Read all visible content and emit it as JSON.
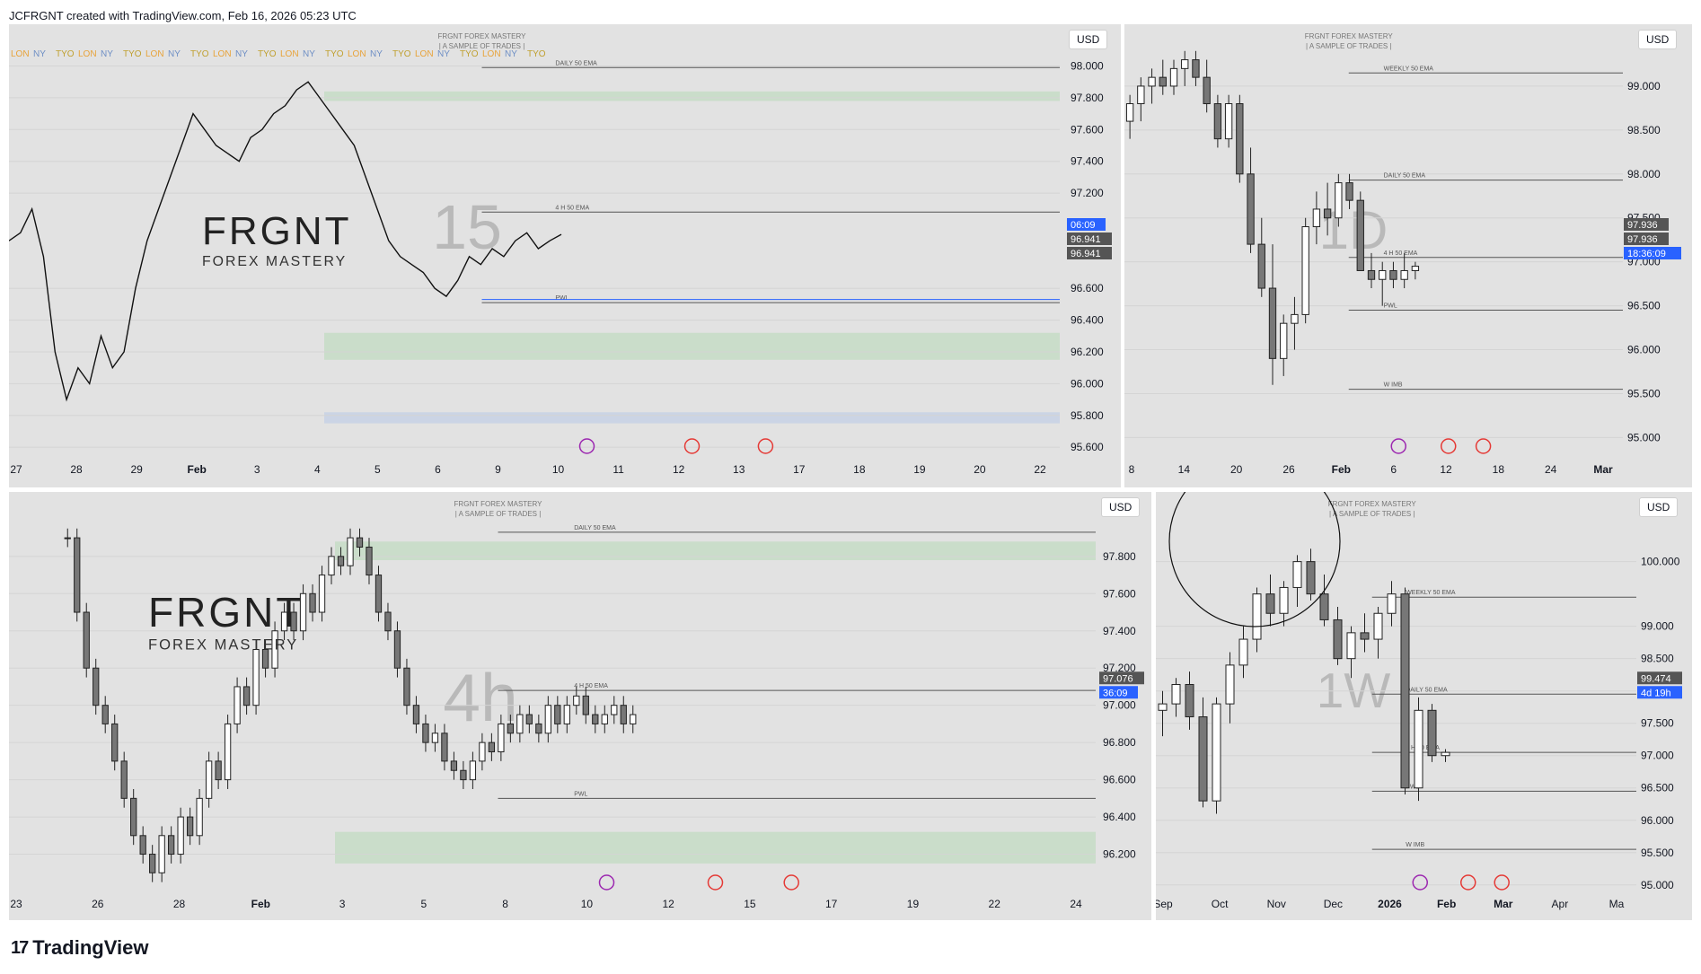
{
  "header": {
    "caption": "JCFRGNT created with TradingView.com, Feb 16, 2026 05:23 UTC"
  },
  "footer": {
    "brand": "TradingView",
    "logo_glyph": "17"
  },
  "watermark": {
    "title": "FRGNT FOREX MASTERY",
    "subtitle": "| A SAMPLE OF TRADES |",
    "brand_big": "FRGNT",
    "brand_small": "FOREX MASTERY"
  },
  "colors": {
    "bg": "#e2e2e2",
    "zone_green": "#c8ddc8",
    "zone_grey": "#c9c9c9",
    "blue_line": "#2962ff",
    "accent_blue": "#2962ff",
    "dark_label": "#555555",
    "event_purple": "#9c27b0",
    "event_red": "#e53935"
  },
  "chart_data": [
    {
      "id": "15m",
      "type": "line",
      "timeframe": "15",
      "currency": "USD",
      "session_labels": [
        "LON",
        "NY",
        "TYO"
      ],
      "x_ticks": [
        "27",
        "28",
        "29",
        "Feb",
        "3",
        "4",
        "5",
        "6",
        "9",
        "10",
        "11",
        "12",
        "13",
        "17",
        "18",
        "19",
        "20",
        "22"
      ],
      "y_ticks": [
        "98.000",
        "97.800",
        "97.600",
        "97.400",
        "97.200",
        "96.600",
        "96.400",
        "96.200",
        "96.000",
        "95.800",
        "95.600"
      ],
      "ylim": [
        95.55,
        98.15
      ],
      "price_labels": [
        {
          "text": "06:09",
          "kind": "blue"
        },
        {
          "text": "96.941",
          "kind": "dark"
        },
        {
          "text": "96.941",
          "kind": "dark"
        }
      ],
      "annotations": [
        "DAILY 50 EMA",
        "4 H 50 EMA",
        "PWL"
      ],
      "zones": [
        {
          "from": 97.78,
          "to": 97.84,
          "kind": "green"
        },
        {
          "from": 96.15,
          "to": 96.32,
          "kind": "green"
        },
        {
          "from": 95.75,
          "to": 95.82,
          "kind": "blue"
        }
      ],
      "levels": [
        {
          "value": 97.99,
          "name": "DAILY 50 EMA"
        },
        {
          "value": 97.08,
          "name": "4 H 50 EMA"
        },
        {
          "value": 96.51,
          "name": "PWL"
        },
        {
          "value": 96.53,
          "name": "blue"
        }
      ],
      "price_path": [
        96.9,
        96.95,
        97.1,
        96.8,
        96.2,
        95.9,
        96.1,
        96.0,
        96.3,
        96.1,
        96.2,
        96.6,
        96.9,
        97.1,
        97.3,
        97.5,
        97.7,
        97.6,
        97.5,
        97.45,
        97.4,
        97.55,
        97.6,
        97.7,
        97.75,
        97.85,
        97.9,
        97.8,
        97.7,
        97.6,
        97.5,
        97.3,
        97.1,
        96.9,
        96.8,
        96.75,
        96.7,
        96.6,
        96.55,
        96.65,
        96.8,
        96.75,
        96.85,
        96.8,
        96.9,
        96.95,
        96.85,
        96.9,
        96.94
      ]
    },
    {
      "id": "1D",
      "type": "bar",
      "timeframe": "1D",
      "currency": "USD",
      "x_ticks": [
        "8",
        "14",
        "20",
        "26",
        "Feb",
        "6",
        "12",
        "18",
        "24",
        "Mar"
      ],
      "y_ticks": [
        "99.000",
        "98.500",
        "98.000",
        "97.500",
        "97.000",
        "96.500",
        "96.000",
        "95.500",
        "95.000"
      ],
      "ylim": [
        94.8,
        99.5
      ],
      "price_labels": [
        {
          "text": "97.936",
          "kind": "dark"
        },
        {
          "text": "97.936",
          "kind": "dark"
        },
        {
          "text": "18:36:09",
          "kind": "blue"
        }
      ],
      "annotations": [
        "WEEKLY 50 EMA",
        "DAILY 50 EMA",
        "4 H 50 EMA",
        "PWL",
        "W IMB"
      ],
      "levels": [
        {
          "value": 99.15,
          "name": "WEEKLY 50 EMA"
        },
        {
          "value": 97.93,
          "name": "DAILY 50 EMA"
        },
        {
          "value": 97.05,
          "name": "4 H 50 EMA"
        },
        {
          "value": 96.45,
          "name": "PWL"
        },
        {
          "value": 95.55,
          "name": "W IMB"
        }
      ],
      "candles": [
        [
          98.6,
          98.9,
          98.4,
          98.8
        ],
        [
          98.8,
          99.1,
          98.6,
          99.0
        ],
        [
          99.0,
          99.2,
          98.8,
          99.1
        ],
        [
          99.1,
          99.3,
          98.9,
          99.0
        ],
        [
          99.0,
          99.3,
          98.9,
          99.2
        ],
        [
          99.2,
          99.4,
          99.0,
          99.3
        ],
        [
          99.3,
          99.4,
          99.0,
          99.1
        ],
        [
          99.1,
          99.3,
          98.7,
          98.8
        ],
        [
          98.8,
          98.9,
          98.3,
          98.4
        ],
        [
          98.4,
          98.9,
          98.3,
          98.8
        ],
        [
          98.8,
          98.9,
          97.9,
          98.0
        ],
        [
          98.0,
          98.3,
          97.1,
          97.2
        ],
        [
          97.2,
          97.5,
          96.6,
          96.7
        ],
        [
          96.7,
          97.2,
          95.6,
          95.9
        ],
        [
          95.9,
          96.4,
          95.7,
          96.3
        ],
        [
          96.3,
          96.6,
          96.0,
          96.4
        ],
        [
          96.4,
          97.5,
          96.3,
          97.4
        ],
        [
          97.4,
          97.8,
          97.2,
          97.6
        ],
        [
          97.6,
          97.9,
          97.3,
          97.5
        ],
        [
          97.5,
          98.0,
          97.4,
          97.9
        ],
        [
          97.9,
          98.0,
          97.6,
          97.7
        ],
        [
          97.7,
          97.8,
          96.9,
          96.9
        ],
        [
          96.9,
          97.1,
          96.7,
          96.8
        ],
        [
          96.8,
          97.0,
          96.5,
          96.9
        ],
        [
          96.9,
          97.0,
          96.7,
          96.8
        ],
        [
          96.8,
          97.1,
          96.7,
          96.9
        ],
        [
          96.9,
          97.0,
          96.8,
          96.95
        ]
      ]
    },
    {
      "id": "4h",
      "type": "bar",
      "timeframe": "4h",
      "currency": "USD",
      "x_ticks": [
        "23",
        "26",
        "28",
        "Feb",
        "3",
        "5",
        "8",
        "10",
        "12",
        "15",
        "17",
        "19",
        "22",
        "24"
      ],
      "y_ticks": [
        "97.800",
        "97.600",
        "97.400",
        "97.200",
        "97.000",
        "96.800",
        "96.600",
        "96.400",
        "96.200"
      ],
      "ylim": [
        96.0,
        98.05
      ],
      "price_labels": [
        {
          "text": "97.076",
          "kind": "dark"
        },
        {
          "text": "36:09",
          "kind": "blue"
        }
      ],
      "annotations": [
        "DAILY 50 EMA",
        "4 H 50 EMA",
        "PWL"
      ],
      "zones": [
        {
          "from": 97.78,
          "to": 97.88,
          "kind": "green"
        },
        {
          "from": 96.15,
          "to": 96.32,
          "kind": "green"
        }
      ],
      "levels": [
        {
          "value": 97.93,
          "name": "DAILY 50 EMA"
        },
        {
          "value": 97.08,
          "name": "4 H 50 EMA"
        },
        {
          "value": 96.5,
          "name": "PWL"
        }
      ],
      "closes": [
        97.9,
        97.5,
        97.2,
        97.0,
        96.9,
        96.7,
        96.5,
        96.3,
        96.2,
        96.1,
        96.3,
        96.2,
        96.4,
        96.3,
        96.5,
        96.7,
        96.6,
        96.9,
        97.1,
        97.0,
        97.3,
        97.2,
        97.4,
        97.5,
        97.4,
        97.6,
        97.5,
        97.7,
        97.8,
        97.75,
        97.9,
        97.85,
        97.7,
        97.5,
        97.4,
        97.2,
        97.0,
        96.9,
        96.8,
        96.85,
        96.7,
        96.65,
        96.6,
        96.7,
        96.8,
        96.75,
        96.9,
        96.85,
        96.95,
        96.9,
        96.85,
        97.0,
        96.9,
        97.0,
        97.05,
        96.95,
        96.9,
        96.95,
        97.0,
        96.9,
        96.95
      ]
    },
    {
      "id": "1W",
      "type": "bar",
      "timeframe": "1W",
      "currency": "USD",
      "x_ticks": [
        "Sep",
        "Oct",
        "Nov",
        "Dec",
        "2026",
        "Feb",
        "Mar",
        "Apr",
        "Ma"
      ],
      "y_ticks": [
        "100.000",
        "99.000",
        "98.500",
        "98.000",
        "97.500",
        "97.000",
        "96.500",
        "96.000",
        "95.500",
        "95.000"
      ],
      "ylim": [
        94.9,
        100.8
      ],
      "price_labels": [
        {
          "text": "99.474",
          "kind": "dark"
        },
        {
          "text": "4d 19h",
          "kind": "blue"
        }
      ],
      "annotations": [
        "WEEKLY 50 EMA",
        "DAILY 50 EMA",
        "4 H 50 EMA",
        "PWL",
        "W IMB"
      ],
      "levels": [
        {
          "value": 99.45,
          "name": "WEEKLY 50 EMA"
        },
        {
          "value": 97.95,
          "name": "DAILY 50 EMA"
        },
        {
          "value": 97.05,
          "name": "4 H 50 EMA"
        },
        {
          "value": 96.45,
          "name": "PWL"
        },
        {
          "value": 95.55,
          "name": "W IMB"
        }
      ],
      "candles": [
        [
          97.7,
          98.0,
          97.3,
          97.8
        ],
        [
          97.8,
          98.2,
          97.6,
          98.1
        ],
        [
          98.1,
          98.3,
          97.4,
          97.6
        ],
        [
          97.6,
          97.9,
          96.2,
          96.3
        ],
        [
          96.3,
          97.9,
          96.1,
          97.8
        ],
        [
          97.8,
          98.6,
          97.5,
          98.4
        ],
        [
          98.4,
          99.0,
          98.2,
          98.8
        ],
        [
          98.8,
          99.6,
          98.6,
          99.5
        ],
        [
          99.5,
          99.8,
          99.0,
          99.2
        ],
        [
          99.2,
          99.7,
          99.0,
          99.6
        ],
        [
          99.6,
          100.1,
          99.3,
          100.0
        ],
        [
          100.0,
          100.2,
          99.4,
          99.5
        ],
        [
          99.5,
          99.8,
          99.0,
          99.1
        ],
        [
          99.1,
          99.3,
          98.4,
          98.5
        ],
        [
          98.5,
          99.0,
          98.2,
          98.9
        ],
        [
          98.9,
          99.2,
          98.6,
          98.8
        ],
        [
          98.8,
          99.3,
          98.5,
          99.2
        ],
        [
          99.2,
          99.7,
          99.0,
          99.5
        ],
        [
          99.5,
          99.6,
          96.4,
          96.5
        ],
        [
          96.5,
          97.9,
          96.3,
          97.7
        ],
        [
          97.7,
          97.8,
          96.9,
          97.0
        ],
        [
          97.0,
          97.1,
          96.9,
          97.05
        ]
      ]
    }
  ]
}
